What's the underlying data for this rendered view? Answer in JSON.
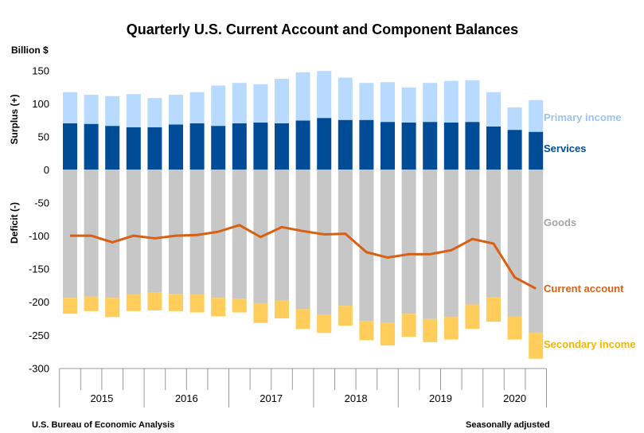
{
  "chart_data": {
    "type": "bar",
    "stacked": true,
    "title": "Quarterly U.S. Current Account and Component Balances",
    "ylabel_units": "Billion $",
    "ylabel_positive": "Surplus (+)",
    "ylabel_negative": "Deficit (-)",
    "ylim": [
      -300,
      150
    ],
    "yticks": [
      150,
      100,
      50,
      0,
      -50,
      -100,
      -150,
      -200,
      -250,
      -300
    ],
    "grid": false,
    "legend": "right, inline labels",
    "years": [
      "2015",
      "2016",
      "2017",
      "2018",
      "2019",
      "2020"
    ],
    "quarters_per_year": [
      4,
      4,
      4,
      4,
      4,
      3
    ],
    "categories": [
      "2015Q1",
      "2015Q2",
      "2015Q3",
      "2015Q4",
      "2016Q1",
      "2016Q2",
      "2016Q3",
      "2016Q4",
      "2017Q1",
      "2017Q2",
      "2017Q3",
      "2017Q4",
      "2018Q1",
      "2018Q2",
      "2018Q3",
      "2018Q4",
      "2019Q1",
      "2019Q2",
      "2019Q3",
      "2019Q4",
      "2020Q1",
      "2020Q2",
      "2020Q3"
    ],
    "series": [
      {
        "name": "Services",
        "kind": "bar",
        "color": "#004c97",
        "values": [
          70,
          69,
          66,
          64,
          64,
          68,
          70,
          66,
          70,
          71,
          70,
          74,
          78,
          75,
          75,
          72,
          71,
          72,
          71,
          72,
          65,
          60,
          57
        ]
      },
      {
        "name": "Primary income",
        "kind": "bar",
        "color": "#b7dafe",
        "values": [
          47,
          44,
          45,
          50,
          44,
          45,
          47,
          61,
          61,
          58,
          67,
          73,
          71,
          64,
          56,
          60,
          53,
          59,
          63,
          63,
          52,
          34,
          48
        ]
      },
      {
        "name": "Goods",
        "kind": "bar",
        "color": "#c6c7c6",
        "values": [
          -194,
          -192,
          -194,
          -189,
          -186,
          -188,
          -189,
          -194,
          -195,
          -202,
          -198,
          -211,
          -219,
          -206,
          -229,
          -232,
          -218,
          -226,
          -223,
          -204,
          -193,
          -222,
          -247
        ]
      },
      {
        "name": "Secondary income",
        "kind": "bar",
        "color": "#ffcd5c",
        "values": [
          -24,
          -22,
          -29,
          -25,
          -27,
          -26,
          -27,
          -28,
          -21,
          -30,
          -27,
          -30,
          -28,
          -30,
          -29,
          -34,
          -35,
          -35,
          -34,
          -37,
          -37,
          -35,
          -39
        ]
      },
      {
        "name": "Current account",
        "kind": "line",
        "color": "#d95f13",
        "values": [
          -100,
          -100,
          -110,
          -100,
          -104,
          -100,
          -99,
          -94,
          -84,
          -102,
          -87,
          -93,
          -98,
          -97,
          -125,
          -133,
          -128,
          -128,
          -122,
          -105,
          -112,
          -163,
          -180
        ]
      }
    ],
    "label_colors": {
      "Primary income": "#9cc3ee",
      "Services": "#004c97",
      "Goods": "#a5a5a5",
      "Current account": "#d95f13",
      "Secondary income": "#f5b400"
    }
  },
  "footer": {
    "source": "U.S. Bureau of Economic Analysis",
    "note": "Seasonally adjusted"
  }
}
